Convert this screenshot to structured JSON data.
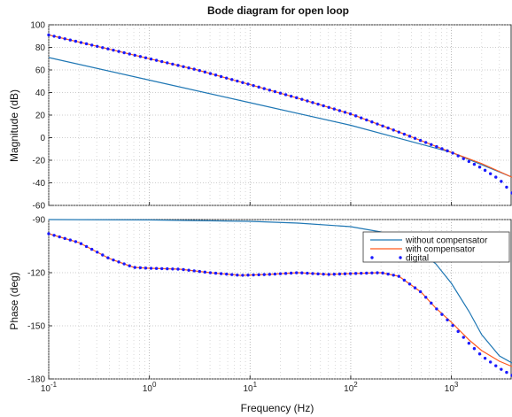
{
  "chart_data": [
    {
      "type": "line",
      "title": "Bode diagram for open loop",
      "xlabel": "",
      "ylabel": "Magnitude (dB)",
      "xscale": "log",
      "xlim": [
        0.1,
        4000
      ],
      "ylim": [
        -60,
        100
      ],
      "yticks": [
        -60,
        -40,
        -20,
        0,
        20,
        40,
        60,
        80,
        100
      ],
      "grid": true,
      "series": [
        {
          "name": "without compensator",
          "color": "#1f77b4",
          "x": [
            0.1,
            1,
            10,
            100,
            1000,
            4000
          ],
          "y": [
            71,
            51,
            31,
            11,
            -13,
            -35
          ]
        },
        {
          "name": "with compensator",
          "color": "#ff5a1f",
          "x": [
            0.1,
            0.3,
            1,
            3,
            10,
            30,
            100,
            300,
            1000,
            2000,
            4000
          ],
          "y": [
            91,
            81,
            70,
            60,
            47,
            35,
            21,
            5,
            -13,
            -23,
            -35
          ]
        },
        {
          "name": "digital",
          "color": "#1a1aff",
          "marker": "dot",
          "x": [
            0.1,
            0.3,
            1,
            3,
            10,
            30,
            100,
            300,
            1000,
            2000,
            3000,
            4000
          ],
          "y": [
            91,
            81,
            70,
            60,
            47,
            35,
            21,
            5,
            -13,
            -27,
            -37,
            -49
          ]
        }
      ]
    },
    {
      "type": "line",
      "title": "",
      "xlabel": "Frequency  (Hz)",
      "ylabel": "Phase (deg)",
      "xscale": "log",
      "xlim": [
        0.1,
        4000
      ],
      "ylim": [
        -180,
        -90
      ],
      "xticks": [
        "10^-1",
        "10^0",
        "10^1",
        "10^2",
        "10^3"
      ],
      "yticks": [
        -180,
        -150,
        -120,
        -90
      ],
      "grid": true,
      "legend": {
        "placement": "top-right",
        "entries": [
          "without compensator",
          "with compensator",
          "digital"
        ]
      },
      "series": [
        {
          "name": "without compensator",
          "color": "#1f77b4",
          "x": [
            0.1,
            1,
            10,
            30,
            100,
            200,
            400,
            700,
            1000,
            1500,
            2000,
            3000,
            4000
          ],
          "y": [
            -90,
            -90.2,
            -91,
            -92,
            -94,
            -97,
            -104,
            -115,
            -126,
            -142,
            -155,
            -167,
            -171
          ]
        },
        {
          "name": "with compensator",
          "color": "#ff5a1f",
          "x": [
            0.1,
            0.2,
            0.4,
            0.7,
            1,
            2,
            4,
            8,
            15,
            30,
            60,
            100,
            200,
            300,
            500,
            700,
            1000,
            1500,
            2000,
            3000,
            4000
          ],
          "y": [
            -98,
            -103,
            -112,
            -117,
            -117.5,
            -118,
            -120,
            -121.5,
            -121,
            -120,
            -121,
            -120.5,
            -120,
            -122,
            -131,
            -140,
            -148,
            -158,
            -164,
            -170,
            -173
          ]
        },
        {
          "name": "digital",
          "color": "#1a1aff",
          "marker": "dot",
          "x": [
            0.1,
            0.2,
            0.4,
            0.7,
            1,
            2,
            4,
            8,
            15,
            30,
            60,
            100,
            200,
            300,
            500,
            700,
            1000,
            1500,
            2000,
            3000,
            4000
          ],
          "y": [
            -98,
            -103,
            -112,
            -117,
            -117.5,
            -118,
            -120,
            -121.5,
            -121,
            -120,
            -121,
            -120.5,
            -120,
            -122,
            -131,
            -140,
            -149,
            -160,
            -167,
            -174,
            -178
          ]
        }
      ]
    }
  ]
}
